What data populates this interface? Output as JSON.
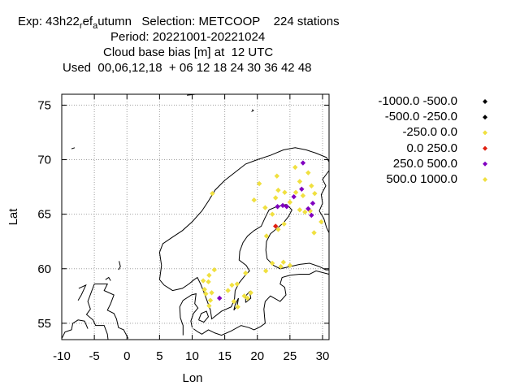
{
  "header": {
    "line1_pre": "Exp: 43h22",
    "line1_sub1": "r",
    "line1_mid": "ef",
    "line1_sub2": "a",
    "line1_post": "utumn   Selection: METCOOP    224 stations",
    "line2": "Period: 20221001-20221024",
    "line3": "Cloud base bias [m] at  12 UTC",
    "line4": "Used  00,06,12,18  + 06 12 18 24 30 36 42 48"
  },
  "chart_data": {
    "type": "scatter",
    "xlabel": "Lon",
    "ylabel": "Lat",
    "xlim": [
      -10,
      31
    ],
    "ylim": [
      53.5,
      76
    ],
    "xticks": [
      -10,
      -5,
      0,
      5,
      10,
      15,
      20,
      25,
      30
    ],
    "yticks": [
      55,
      60,
      65,
      70,
      75
    ],
    "grid": true,
    "legend_position": "right",
    "classes": [
      {
        "label": "-1000.0 -500.0",
        "color": "#000000"
      },
      {
        "label": "-500.0 -250.0",
        "color": "#000000"
      },
      {
        "label": "-250.0 0.0",
        "color": "#f0e040"
      },
      {
        "label": "0.0 250.0",
        "color": "#e02010"
      },
      {
        "label": "250.0 500.0",
        "color": "#8000c0"
      },
      {
        "label": "500.0 1000.0",
        "color": "#f0e040"
      }
    ],
    "points": [
      [
        13.1,
        66.9,
        2
      ],
      [
        20.3,
        67.8,
        2
      ],
      [
        19.5,
        66.3,
        2
      ],
      [
        21.2,
        65.6,
        2
      ],
      [
        23.0,
        68.5,
        2
      ],
      [
        23.2,
        67.2,
        2
      ],
      [
        22.8,
        66.5,
        2
      ],
      [
        24.2,
        67.0,
        2
      ],
      [
        25.8,
        69.3,
        2
      ],
      [
        27.8,
        68.8,
        2
      ],
      [
        26.5,
        68.0,
        2
      ],
      [
        28.3,
        67.6,
        2
      ],
      [
        25.9,
        67.0,
        2
      ],
      [
        27.0,
        66.7,
        2
      ],
      [
        28.8,
        66.9,
        2
      ],
      [
        25.0,
        66.1,
        2
      ],
      [
        26.5,
        65.4,
        2
      ],
      [
        27.3,
        65.2,
        2
      ],
      [
        28.1,
        65.3,
        2
      ],
      [
        22.3,
        65.0,
        2
      ],
      [
        24.1,
        64.1,
        2
      ],
      [
        29.8,
        64.3,
        2
      ],
      [
        28.7,
        63.3,
        2
      ],
      [
        23.2,
        63.6,
        2
      ],
      [
        21.4,
        63.0,
        2
      ],
      [
        22.3,
        60.5,
        2
      ],
      [
        24.0,
        60.6,
        2
      ],
      [
        25.0,
        60.3,
        2
      ],
      [
        21.3,
        59.8,
        2
      ],
      [
        23.6,
        60.2,
        2
      ],
      [
        12.6,
        59.4,
        2
      ],
      [
        13.4,
        59.9,
        2
      ],
      [
        11.7,
        58.9,
        2
      ],
      [
        12.5,
        58.8,
        2
      ],
      [
        18.2,
        59.6,
        2
      ],
      [
        16.9,
        58.6,
        2
      ],
      [
        16.1,
        58.5,
        2
      ],
      [
        15.5,
        58.0,
        2
      ],
      [
        18.0,
        57.5,
        2
      ],
      [
        19.0,
        57.8,
        2
      ],
      [
        16.4,
        57.0,
        2
      ],
      [
        17.0,
        56.5,
        2
      ],
      [
        12.1,
        57.7,
        2
      ],
      [
        13.0,
        57.8,
        2
      ],
      [
        12.8,
        57.1,
        2
      ],
      [
        12.6,
        56.6,
        2
      ],
      [
        22.8,
        63.9,
        3
      ],
      [
        27.0,
        69.7,
        4
      ],
      [
        26.8,
        67.3,
        4
      ],
      [
        27.8,
        65.5,
        4
      ],
      [
        28.5,
        66.0,
        4
      ],
      [
        28.3,
        64.9,
        4
      ],
      [
        23.1,
        65.7,
        4
      ],
      [
        23.9,
        65.8,
        4
      ],
      [
        24.5,
        65.7,
        4
      ],
      [
        25.6,
        66.6,
        4
      ],
      [
        14.2,
        57.3,
        4
      ],
      [
        11.9,
        58.1,
        5
      ],
      [
        18.5,
        57.3,
        5
      ]
    ]
  }
}
